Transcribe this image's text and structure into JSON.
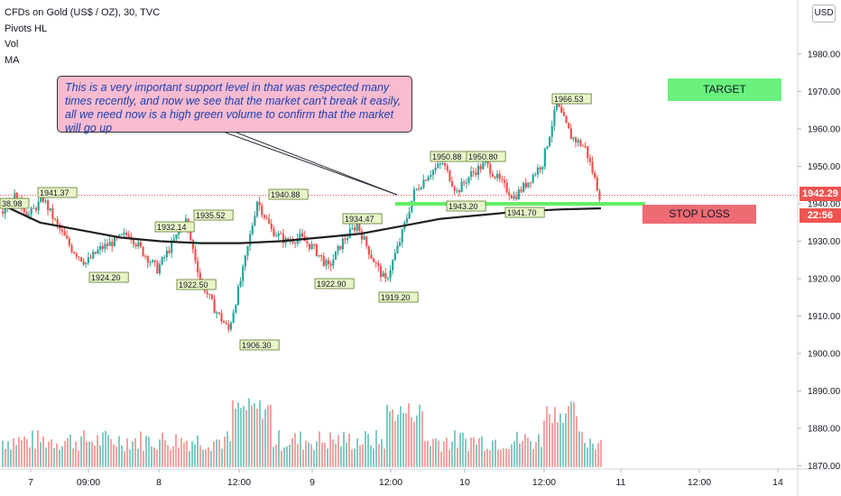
{
  "legend": {
    "title": "CFDs on Gold (US$ / OZ), 30, TVC",
    "line2": "Pivots HL",
    "line3": "Vol",
    "line4": "MA"
  },
  "currency_button": "USD",
  "note_text": "This is a very important support level in that was respected many times recently, and now we see that the market can't break it easily, all we need now is a high green volume to confirm that the market will go up",
  "target_label": "TARGET",
  "stop_label": "STOP LOSS",
  "last_price": "1942.29",
  "countdown": "22:56",
  "colors": {
    "up": "#26a69a",
    "down": "#ef5350",
    "ma": "#1f1f1f",
    "support": "#66ee66",
    "pivot_bg": "#e8f5c8"
  },
  "chart_data": {
    "type": "candlestick",
    "title": "CFDs on Gold (US$ / OZ), 30, TVC",
    "y_axis": {
      "range": [
        1870,
        1995
      ],
      "ticks": [
        "1980.00",
        "1970.00",
        "1960.00",
        "1950.00",
        "1940.00",
        "1930.00",
        "1920.00",
        "1910.00",
        "1900.00",
        "1890.00",
        "1880.00",
        "1870.00"
      ]
    },
    "x_axis": {
      "ticks": [
        "7",
        "09:00",
        "8",
        "12:00",
        "9",
        "12:00",
        "10",
        "12:00",
        "11",
        "12:00",
        "14"
      ]
    },
    "pivots": [
      "38.98",
      "1941.37",
      "1924.20",
      "1932.14",
      "1922.50",
      "1935.52",
      "1906.30",
      "1940.88",
      "1922.90",
      "1934.47",
      "1919.20",
      "1950.88",
      "1943.20",
      "1950.80",
      "1941.70",
      "1966.53"
    ],
    "support_level": 1940,
    "price_path": [
      1938,
      1942,
      1937,
      1941.37,
      1934,
      1928,
      1924.2,
      1928,
      1930,
      1932.14,
      1927,
      1922.5,
      1929,
      1935.52,
      1920,
      1912,
      1906.3,
      1922,
      1940.88,
      1933,
      1930,
      1931,
      1928,
      1922.9,
      1930,
      1934.47,
      1926,
      1919.2,
      1930,
      1943,
      1948,
      1950.88,
      1943.2,
      1948,
      1950.8,
      1946,
      1941.7,
      1946,
      1951,
      1966.53,
      1958,
      1955,
      1942.29
    ],
    "ma_path": [
      1940,
      1935,
      1933,
      1931,
      1930,
      1929.5,
      1929.5,
      1930,
      1931,
      1932,
      1934,
      1936,
      1937,
      1938,
      1938.5,
      1938.8
    ]
  }
}
